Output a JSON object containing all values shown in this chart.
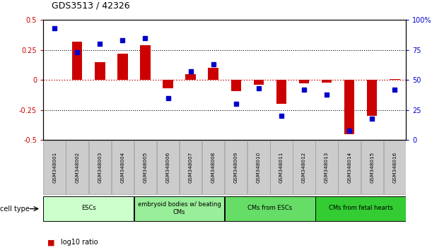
{
  "title": "GDS3513 / 42326",
  "samples": [
    "GSM348001",
    "GSM348002",
    "GSM348003",
    "GSM348004",
    "GSM348005",
    "GSM348006",
    "GSM348007",
    "GSM348008",
    "GSM348009",
    "GSM348010",
    "GSM348011",
    "GSM348012",
    "GSM348013",
    "GSM348014",
    "GSM348015",
    "GSM348016"
  ],
  "log10_ratio": [
    0.0,
    0.32,
    0.15,
    0.22,
    0.29,
    -0.07,
    0.05,
    0.1,
    -0.09,
    -0.04,
    -0.2,
    -0.03,
    -0.02,
    -0.45,
    -0.3,
    0.01
  ],
  "percentile_rank": [
    93,
    73,
    80,
    83,
    85,
    35,
    57,
    63,
    30,
    43,
    20,
    42,
    38,
    8,
    18,
    42
  ],
  "group_colors": [
    "#ccffcc",
    "#99ee99",
    "#66dd66",
    "#33cc33"
  ],
  "group_labels": [
    "ESCs",
    "embryoid bodies w/ beating\nCMs",
    "CMs from ESCs",
    "CMs from fetal hearts"
  ],
  "group_ranges": [
    [
      0,
      3
    ],
    [
      4,
      7
    ],
    [
      8,
      11
    ],
    [
      12,
      15
    ]
  ],
  "ylim_left": [
    -0.5,
    0.5
  ],
  "ylim_right": [
    0,
    100
  ],
  "bar_color": "#cc0000",
  "dot_color": "#0000cc",
  "hline_color": "#cc0000",
  "dotted_color": "#000000",
  "background_color": "#ffffff",
  "sample_box_color": "#cccccc",
  "sample_box_edge": "#999999",
  "bar_width": 0.45,
  "dot_size": 5
}
